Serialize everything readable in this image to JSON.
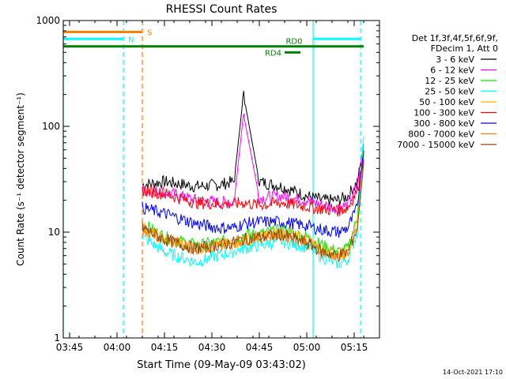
{
  "chart_data": {
    "type": "line",
    "title": "RHESSI Count Rates",
    "xlabel": "Start Time (09-May-09 03:43:02)",
    "ylabel": "Count Rate (s⁻¹ detector segment⁻¹)",
    "yscale": "log",
    "ylim": [
      1,
      1000
    ],
    "xlim_minutes_after_0343": [
      0,
      100
    ],
    "x_tick_labels": [
      "03:45",
      "04:00",
      "04:15",
      "04:30",
      "04:45",
      "05:00",
      "05:15"
    ],
    "y_tick_labels": [
      "1",
      "10",
      "100",
      "1000"
    ],
    "legend_title": [
      "Det 1f,3f,4f,5f,6f,9f,",
      "FDecim 1, Att 0"
    ],
    "legend_position": "right",
    "grid": false,
    "timestamp": "14-Oct-2021 17:10",
    "x_time_points": [
      "04:08",
      "04:15",
      "04:25",
      "04:32",
      "04:37",
      "04:40",
      "04:45",
      "04:52",
      "05:00",
      "05:05",
      "05:10",
      "05:13",
      "05:16",
      "05:18"
    ],
    "series": [
      {
        "name": "3 - 6 keV",
        "color": "#000000",
        "values": [
          28,
          30,
          27,
          28,
          30,
          200,
          30,
          27,
          22,
          20,
          20,
          22,
          30,
          60
        ]
      },
      {
        "name": "6 - 12 keV",
        "color": "#ff00ff",
        "values": [
          25,
          24,
          20,
          19,
          19,
          130,
          21,
          22,
          20,
          18,
          17,
          18,
          28,
          65
        ]
      },
      {
        "name": "12 - 25 keV",
        "color": "#00ee00",
        "values": [
          12,
          9,
          7.5,
          8,
          8.5,
          9.5,
          9.5,
          10.5,
          9,
          7.5,
          6.5,
          7,
          14,
          75
        ]
      },
      {
        "name": "25 - 50 keV",
        "color": "#00ffff",
        "values": [
          9,
          6.5,
          5.2,
          6,
          6.6,
          7,
          7.5,
          8.2,
          7.2,
          5.8,
          5,
          5.5,
          10,
          90
        ]
      },
      {
        "name": "50 - 100 keV",
        "color": "#ffb000",
        "values": [
          11,
          8.5,
          7,
          7.5,
          8,
          8.5,
          9,
          10,
          8.5,
          7,
          6,
          6.5,
          12,
          50
        ]
      },
      {
        "name": "100 - 300 keV",
        "color": "#ff0000",
        "values": [
          25,
          23,
          19,
          18.5,
          18.5,
          19,
          18,
          19,
          17.5,
          16.5,
          16,
          17,
          25,
          55
        ]
      },
      {
        "name": "300 - 800 keV",
        "color": "#0000ff",
        "values": [
          17,
          15,
          12,
          11,
          11,
          12,
          12.5,
          12.5,
          11.5,
          10.5,
          10,
          11,
          17,
          60
        ]
      },
      {
        "name": "800 - 7000 keV",
        "color": "#ff7f00",
        "values": [
          11,
          8.5,
          7,
          7.5,
          8,
          8.5,
          9,
          9.5,
          8,
          6.5,
          6,
          6.5,
          11,
          45
        ]
      },
      {
        "name": "7000 - 15000 keV",
        "color": "#8b4513",
        "values": [
          11,
          8.5,
          7,
          7.5,
          8,
          8.5,
          9,
          9.5,
          8,
          6.5,
          6,
          6.5,
          11,
          45
        ]
      }
    ],
    "flag_bars": [
      {
        "label": "S",
        "color": "#ff7f00",
        "level": 780,
        "start": "03:43",
        "end": "04:08"
      },
      {
        "label": "N",
        "color": "#00ffff",
        "level": 670,
        "start": "03:43",
        "end": "04:02"
      },
      {
        "label": "",
        "color": "#00ffff",
        "level": 670,
        "start": "05:02",
        "end": "05:17"
      },
      {
        "label": "RD0",
        "color": "#008000",
        "level": 570,
        "start": "03:43",
        "end": "05:18"
      },
      {
        "label": "RD4",
        "color": "#008000",
        "level": 500,
        "start": "04:53",
        "end": "04:58"
      }
    ],
    "vertical_markers": [
      {
        "time": "03:43",
        "color": "#00ffff",
        "style": "solid"
      },
      {
        "time": "04:02",
        "color": "#00ffff",
        "style": "dashed"
      },
      {
        "time": "04:08",
        "color": "#ff7f00",
        "style": "dashed"
      },
      {
        "time": "05:02",
        "color": "#00ffff",
        "style": "solid"
      },
      {
        "time": "05:17",
        "color": "#00ffff",
        "style": "dashed"
      }
    ]
  }
}
